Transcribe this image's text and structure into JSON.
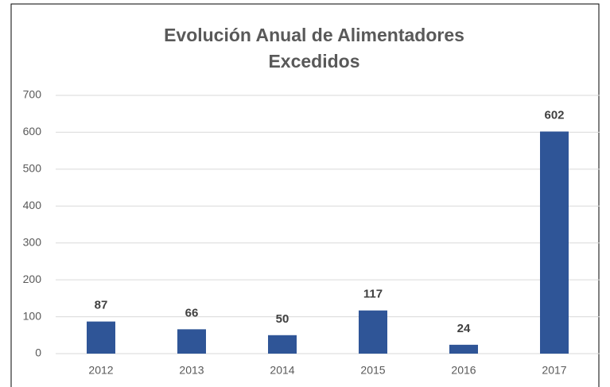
{
  "chart_data": {
    "type": "bar",
    "title": [
      "Evolución Anual de Alimentadores",
      "Excedidos"
    ],
    "categories": [
      "2012",
      "2013",
      "2014",
      "2015",
      "2016",
      "2017"
    ],
    "values": [
      87,
      66,
      50,
      117,
      24,
      602
    ],
    "color": "#2f5597",
    "ylim": [
      0,
      700
    ],
    "yticks": [
      0,
      100,
      200,
      300,
      400,
      500,
      600,
      700
    ],
    "grid": true,
    "data_labels": true
  }
}
